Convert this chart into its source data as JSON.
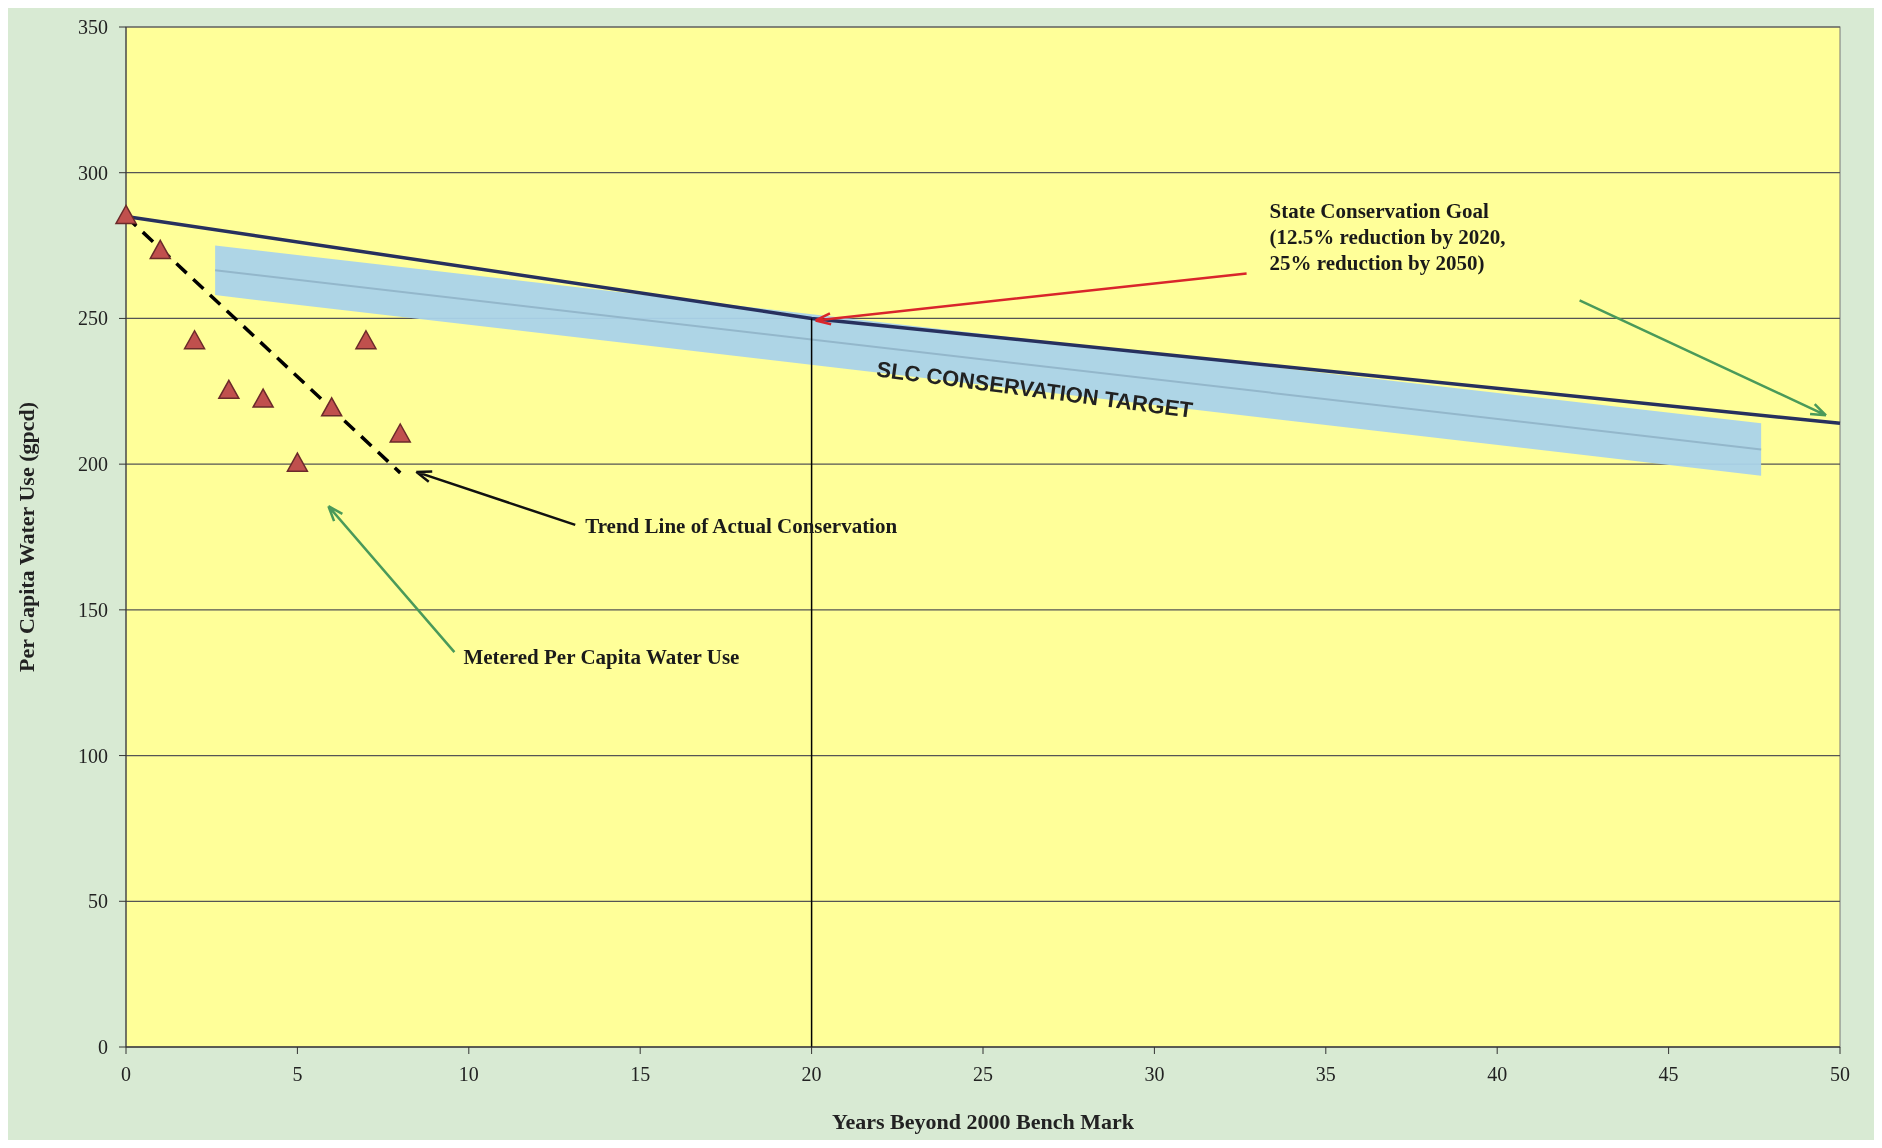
{
  "chart_data": {
    "type": "scatter",
    "xlabel": "Years Beyond 2000 Bench Mark",
    "ylabel": "Per Capita Water Use (gpcd)",
    "xlim": [
      0,
      50
    ],
    "ylim": [
      0,
      350
    ],
    "xticks": [
      0,
      5,
      10,
      15,
      20,
      25,
      30,
      35,
      40,
      45,
      50
    ],
    "yticks": [
      0,
      50,
      100,
      150,
      200,
      250,
      300,
      350
    ],
    "grid": "y",
    "series": [
      {
        "type": "line",
        "color": "#93b7cb",
        "x": [
          2.6,
          47.7
        ],
        "values": [
          266.5,
          205
        ],
        "lower": [
          258,
          196
        ],
        "upper": [
          275,
          214
        ]
      },
      {
        "type": "line",
        "color": "#27305e",
        "x": [
          0,
          20,
          50
        ],
        "values": [
          285,
          250,
          214
        ]
      },
      {
        "type": "line",
        "color": "#000000",
        "line_style": "dashed",
        "x": [
          0,
          8
        ],
        "values": [
          285,
          197
        ]
      },
      {
        "type": "line",
        "color": "#000000",
        "x": [
          20,
          20
        ],
        "values": [
          0,
          250
        ]
      },
      {
        "marker": "triangle",
        "color": "#c0504d",
        "x": [
          0,
          1,
          2,
          3,
          4,
          5,
          6,
          7,
          8
        ],
        "values": [
          285,
          273,
          242,
          225,
          222,
          200,
          219,
          242,
          210
        ]
      }
    ],
    "annotations": [
      {
        "text": "State Conservation Goal\n(12.5% reduction by 2020,\n25% reduction by 2050)",
        "x": 20,
        "y": 250
      },
      "Trend Line of Actual Conservation",
      "Metered Per Capita Water Use",
      {
        "text": "SLC CONSERVATION TARGET",
        "x": 26.5,
        "y": 225
      }
    ]
  }
}
